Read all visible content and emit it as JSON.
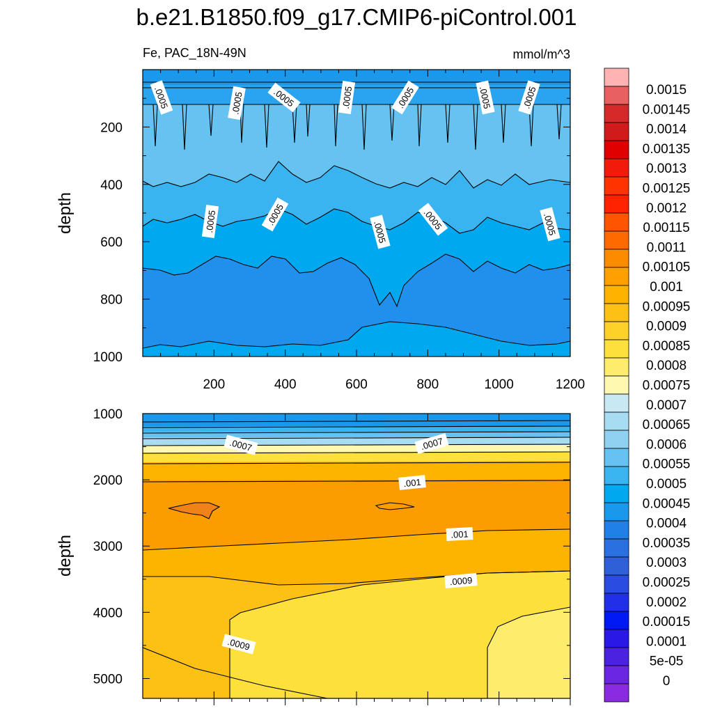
{
  "chart_data": {
    "type": "heatmap",
    "title": "b.e21.B1850.f09_g17.CMIP6-piControl.001",
    "variable_label": "Fe, PAC_18N-49N",
    "units_label": "mmol/m^3",
    "panels": [
      {
        "name": "upper",
        "ylabel": "depth",
        "ylim": [
          0,
          1000
        ],
        "y_ticks": [
          "200",
          "400",
          "600",
          "800",
          "1000"
        ],
        "xlim": [
          0,
          1200
        ],
        "x_ticks": [
          "200",
          "400",
          "600",
          "800",
          "1000",
          "1200"
        ],
        "contour_labels": [
          ".0005",
          ".0005",
          ".0005",
          ".0005",
          ".0005",
          ".0005",
          ".0005",
          ".0005",
          ".0005",
          ".0005",
          ".0005",
          ".0005"
        ],
        "approx_levels_by_depth": [
          [
            10,
            0.0004
          ],
          [
            200,
            0.0005
          ],
          [
            400,
            0.00045
          ],
          [
            600,
            0.00045
          ],
          [
            800,
            0.0004
          ],
          [
            1000,
            0.0004
          ]
        ]
      },
      {
        "name": "lower",
        "ylabel": "depth",
        "ylim": [
          1000,
          5300
        ],
        "y_ticks": [
          "1000",
          "2000",
          "3000",
          "4000",
          "5000"
        ],
        "xlim": [
          0,
          1200
        ],
        "contour_labels": [
          ".0007",
          ".0007",
          ".001",
          ".001",
          ".0009",
          ".0009"
        ],
        "approx_levels_by_depth": [
          [
            1000,
            0.00045
          ],
          [
            1500,
            0.00075
          ],
          [
            2000,
            0.001
          ],
          [
            2500,
            0.001
          ],
          [
            3000,
            0.00095
          ],
          [
            4000,
            0.0009
          ],
          [
            5000,
            0.00085
          ]
        ]
      }
    ],
    "colorbar": {
      "labels": [
        "0.0015",
        "0.00145",
        "0.0014",
        "0.00135",
        "0.0013",
        "0.00125",
        "0.0012",
        "0.00115",
        "0.0011",
        "0.00105",
        "0.001",
        "0.00095",
        "0.0009",
        "0.00085",
        "0.0008",
        "0.00075",
        "0.0007",
        "0.00065",
        "0.0006",
        "0.00055",
        "0.0005",
        "0.00045",
        "0.0004",
        "0.00035",
        "0.0003",
        "0.00025",
        "0.0002",
        "0.00015",
        "0.0001",
        "5e-05",
        "0"
      ],
      "colors": [
        "#ffb3b3",
        "#e86060",
        "#d42a2a",
        "#d11a1a",
        "#e00000",
        "#f21a0a",
        "#ff3300",
        "#ff2200",
        "#ff5500",
        "#ff6a00",
        "#fb8c00",
        "#ffa000",
        "#ffb300",
        "#fdc116",
        "#fdd02a",
        "#fde03c",
        "#feec6c",
        "#fff8b0",
        "#c8e8f4",
        "#a8dcf2",
        "#90d0f0",
        "#66c2f0",
        "#3ab4f0",
        "#00a8f0",
        "#1a98ec",
        "#2080e8",
        "#2a70e0",
        "#3060d8",
        "#2a4ce0",
        "#2030e8",
        "#0018f4",
        "#2a18e6",
        "#4a22e0",
        "#6a26e2",
        "#8a2be2"
      ]
    }
  }
}
